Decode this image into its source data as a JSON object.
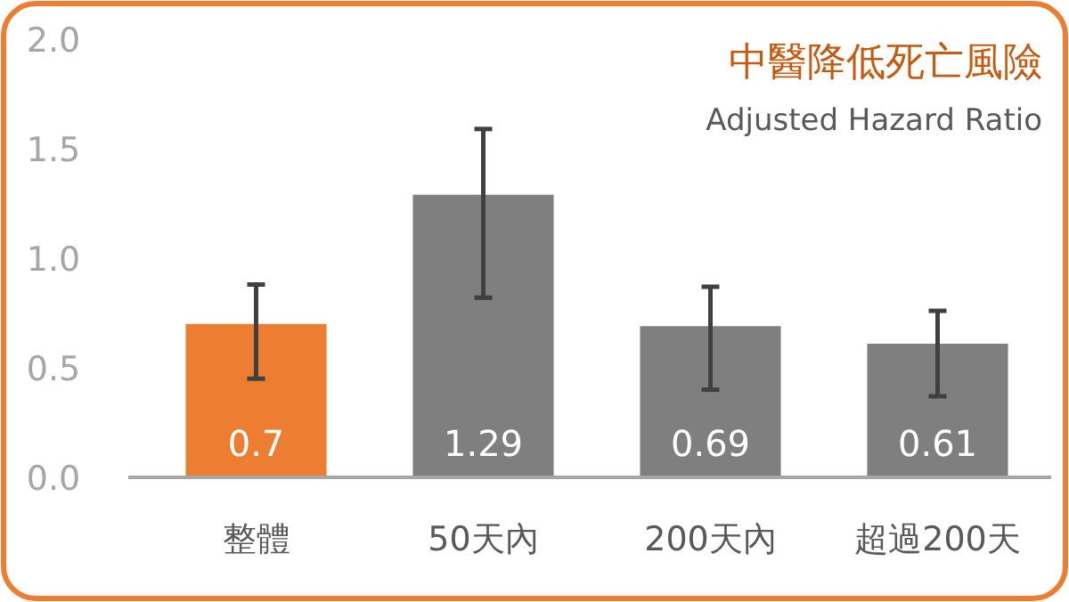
{
  "chart_data": {
    "type": "bar",
    "title": "中醫降低死亡風險",
    "subtitle": "Adjusted Hazard Ratio",
    "categories": [
      "整體",
      "50天內",
      "200天內",
      "超過200天"
    ],
    "values": [
      0.7,
      1.29,
      0.69,
      0.61
    ],
    "colors": [
      "#ed7d31",
      "#7f7f7f",
      "#7f7f7f",
      "#7f7f7f"
    ],
    "errors": [
      [
        0.45,
        0.88
      ],
      [
        0.82,
        1.59
      ],
      [
        0.4,
        0.87
      ],
      [
        0.37,
        0.76
      ]
    ],
    "ylim": [
      0,
      2
    ],
    "yticks": [
      {
        "value": 0,
        "label": "0.0"
      },
      {
        "value": 0.5,
        "label": "0.5"
      },
      {
        "value": 1,
        "label": "1.0"
      },
      {
        "value": 1.5,
        "label": "1.5"
      },
      {
        "value": 2,
        "label": "2.0"
      }
    ],
    "data_labels": true
  }
}
